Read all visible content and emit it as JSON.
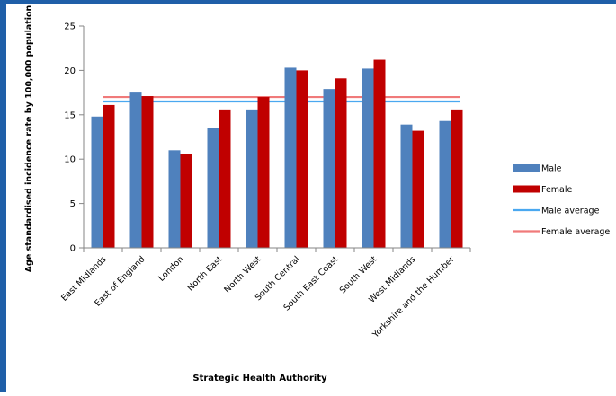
{
  "chart_data": {
    "type": "bar",
    "xlabel": "Strategic Health Authority",
    "ylabel": "Age standardised incidence  rate by 100,000 population",
    "ylim": [
      0,
      25
    ],
    "yticks": [
      0,
      5,
      10,
      15,
      20,
      25
    ],
    "grid": false,
    "legend_position": "right",
    "categories": [
      "East Midlands",
      "East of England",
      "London",
      "North East",
      "North West",
      "South Central",
      "South East Coast",
      "South West",
      "West Midlands",
      "Yorkshire and the Humber"
    ],
    "series": [
      {
        "name": "Male",
        "color": "#4f81bd",
        "values": [
          14.8,
          17.5,
          11.0,
          13.5,
          15.6,
          20.3,
          17.9,
          20.2,
          13.9,
          14.3
        ]
      },
      {
        "name": "Female",
        "color": "#c00000",
        "values": [
          16.1,
          17.1,
          10.6,
          15.6,
          17.0,
          20.0,
          19.1,
          21.2,
          13.2,
          15.6
        ]
      }
    ],
    "reference_lines": [
      {
        "name": "Male average",
        "color": "#4aa8f0",
        "value": 16.5
      },
      {
        "name": "Female average",
        "color": "#f07a7a",
        "value": 17.0
      }
    ]
  }
}
